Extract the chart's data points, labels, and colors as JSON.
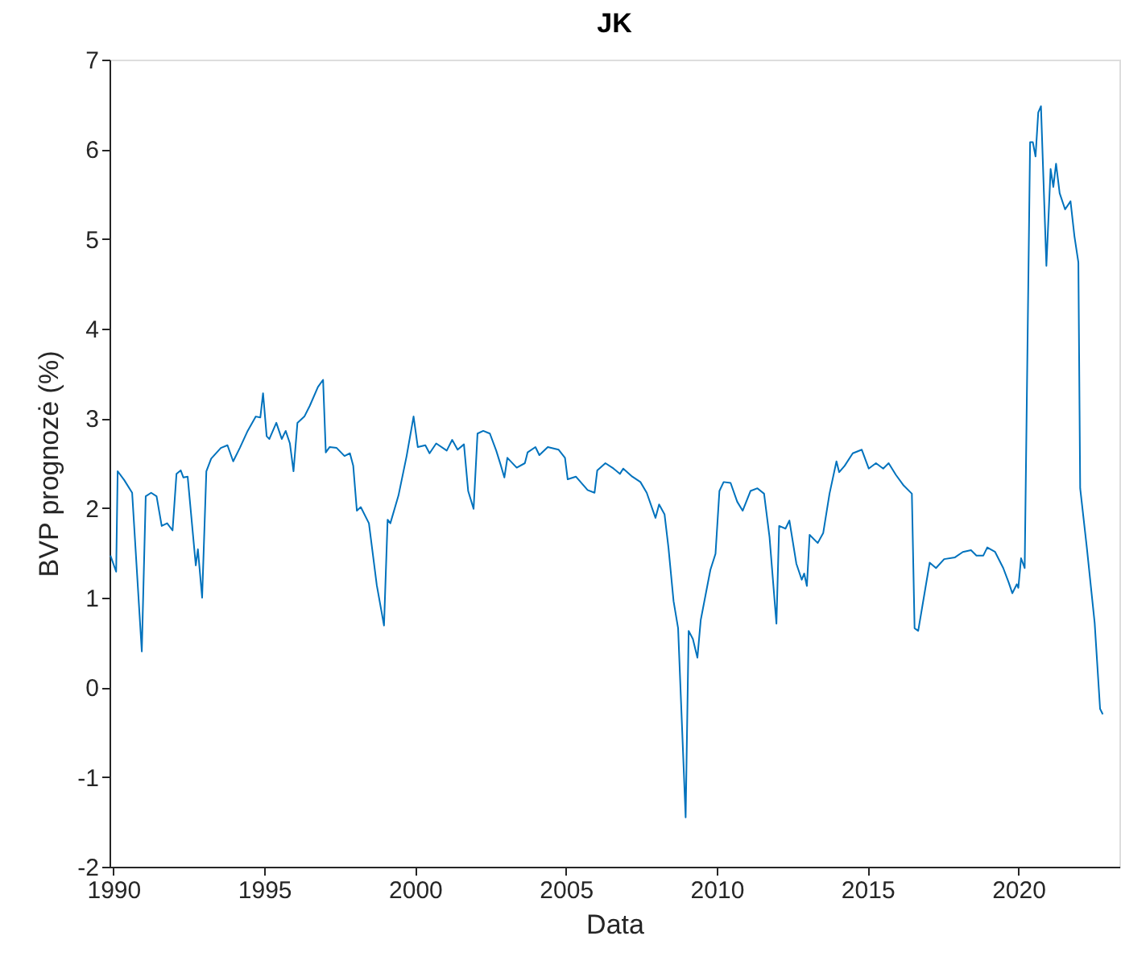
{
  "chart_data": {
    "type": "line",
    "title": "JK",
    "xlabel": "Data",
    "ylabel": "BVP prognozė (%)",
    "xlim": [
      1989.87,
      2023.35
    ],
    "xticks": [
      1990,
      1995,
      2000,
      2005,
      2010,
      2015,
      2020
    ],
    "ylim": [
      -2,
      7
    ],
    "yticks": [
      -2,
      -1,
      0,
      1,
      2,
      3,
      4,
      5,
      6,
      7
    ],
    "grid": false,
    "series": [
      {
        "color": "#0072bd",
        "x": [
          1989.9,
          1990.09,
          1990.14,
          1990.36,
          1990.62,
          1990.94,
          1991.07,
          1991.25,
          1991.43,
          1991.6,
          1991.78,
          1991.96,
          1992.09,
          1992.23,
          1992.32,
          1992.46,
          1992.73,
          1992.8,
          1992.94,
          1993.08,
          1993.24,
          1993.56,
          1993.78,
          1993.97,
          1994.19,
          1994.45,
          1994.72,
          1994.87,
          1994.96,
          1995.08,
          1995.17,
          1995.4,
          1995.58,
          1995.71,
          1995.85,
          1995.97,
          1996.1,
          1996.33,
          1996.51,
          1996.78,
          1996.95,
          1997.04,
          1997.17,
          1997.4,
          1997.66,
          1997.84,
          1997.95,
          1998.07,
          1998.2,
          1998.47,
          1998.73,
          1998.97,
          1999.09,
          1999.18,
          1999.45,
          1999.72,
          1999.95,
          2000.09,
          2000.34,
          2000.48,
          2000.7,
          2001.05,
          2001.23,
          2001.41,
          2001.62,
          2001.76,
          2001.94,
          2002.07,
          2002.26,
          2002.48,
          2002.69,
          2002.83,
          2002.96,
          2003.06,
          2003.37,
          2003.64,
          2003.73,
          2003.99,
          2004.12,
          2004.4,
          2004.76,
          2004.97,
          2005.06,
          2005.33,
          2005.72,
          2005.95,
          2006.04,
          2006.31,
          2006.58,
          2006.79,
          2006.9,
          2007.2,
          2007.47,
          2007.68,
          2007.97,
          2008.09,
          2008.27,
          2008.4,
          2008.57,
          2008.72,
          2008.97,
          2009.07,
          2009.21,
          2009.36,
          2009.47,
          2009.79,
          2009.96,
          2010.09,
          2010.23,
          2010.46,
          2010.68,
          2010.86,
          2011.12,
          2011.35,
          2011.57,
          2011.75,
          2011.98,
          2012.07,
          2012.28,
          2012.41,
          2012.64,
          2012.82,
          2012.9,
          2012.99,
          2013.08,
          2013.35,
          2013.53,
          2013.74,
          2013.97,
          2014.06,
          2014.24,
          2014.51,
          2014.81,
          2015.04,
          2015.28,
          2015.52,
          2015.7,
          2015.94,
          2016.2,
          2016.47,
          2016.56,
          2016.68,
          2016.92,
          2017.06,
          2017.27,
          2017.54,
          2017.9,
          2018.16,
          2018.43,
          2018.61,
          2018.84,
          2018.97,
          2019.23,
          2019.5,
          2019.68,
          2019.8,
          2019.95,
          2020.0,
          2020.09,
          2020.21,
          2020.39,
          2020.48,
          2020.57,
          2020.66,
          2020.75,
          2020.93,
          2021.07,
          2021.16,
          2021.25,
          2021.37,
          2021.55,
          2021.73,
          2021.86,
          2021.99,
          2022.05,
          2022.27,
          2022.53,
          2022.71,
          2022.8
        ],
        "values": [
          1.47,
          1.29,
          2.41,
          2.31,
          2.17,
          0.4,
          2.13,
          2.17,
          2.13,
          1.8,
          1.83,
          1.75,
          2.38,
          2.42,
          2.34,
          2.35,
          1.36,
          1.54,
          1.0,
          2.41,
          2.55,
          2.67,
          2.7,
          2.52,
          2.67,
          2.86,
          3.02,
          3.01,
          3.28,
          2.8,
          2.77,
          2.95,
          2.77,
          2.86,
          2.72,
          2.41,
          2.95,
          3.02,
          3.14,
          3.35,
          3.43,
          2.62,
          2.68,
          2.67,
          2.58,
          2.61,
          2.47,
          1.97,
          2.01,
          1.83,
          1.14,
          0.69,
          1.87,
          1.83,
          2.14,
          2.58,
          3.02,
          2.68,
          2.7,
          2.61,
          2.72,
          2.64,
          2.76,
          2.65,
          2.71,
          2.19,
          1.99,
          2.83,
          2.86,
          2.83,
          2.64,
          2.49,
          2.34,
          2.56,
          2.45,
          2.5,
          2.62,
          2.68,
          2.59,
          2.68,
          2.65,
          2.56,
          2.32,
          2.35,
          2.2,
          2.17,
          2.42,
          2.5,
          2.44,
          2.38,
          2.44,
          2.35,
          2.29,
          2.17,
          1.89,
          2.04,
          1.93,
          1.56,
          0.96,
          0.66,
          -1.45,
          0.63,
          0.54,
          0.33,
          0.75,
          1.31,
          1.49,
          2.19,
          2.29,
          2.28,
          2.07,
          1.97,
          2.19,
          2.22,
          2.16,
          1.68,
          0.71,
          1.8,
          1.77,
          1.86,
          1.38,
          1.2,
          1.27,
          1.13,
          1.7,
          1.61,
          1.72,
          2.16,
          2.52,
          2.4,
          2.47,
          2.61,
          2.65,
          2.44,
          2.5,
          2.44,
          2.5,
          2.37,
          2.25,
          2.16,
          0.66,
          0.63,
          1.11,
          1.39,
          1.33,
          1.43,
          1.45,
          1.51,
          1.53,
          1.47,
          1.47,
          1.56,
          1.51,
          1.33,
          1.17,
          1.05,
          1.15,
          1.11,
          1.44,
          1.33,
          6.08,
          6.08,
          5.92,
          6.41,
          6.48,
          4.7,
          5.78,
          5.58,
          5.84,
          5.51,
          5.33,
          5.42,
          5.03,
          4.74,
          2.22,
          1.56,
          0.72,
          -0.24,
          -0.3
        ]
      }
    ]
  }
}
